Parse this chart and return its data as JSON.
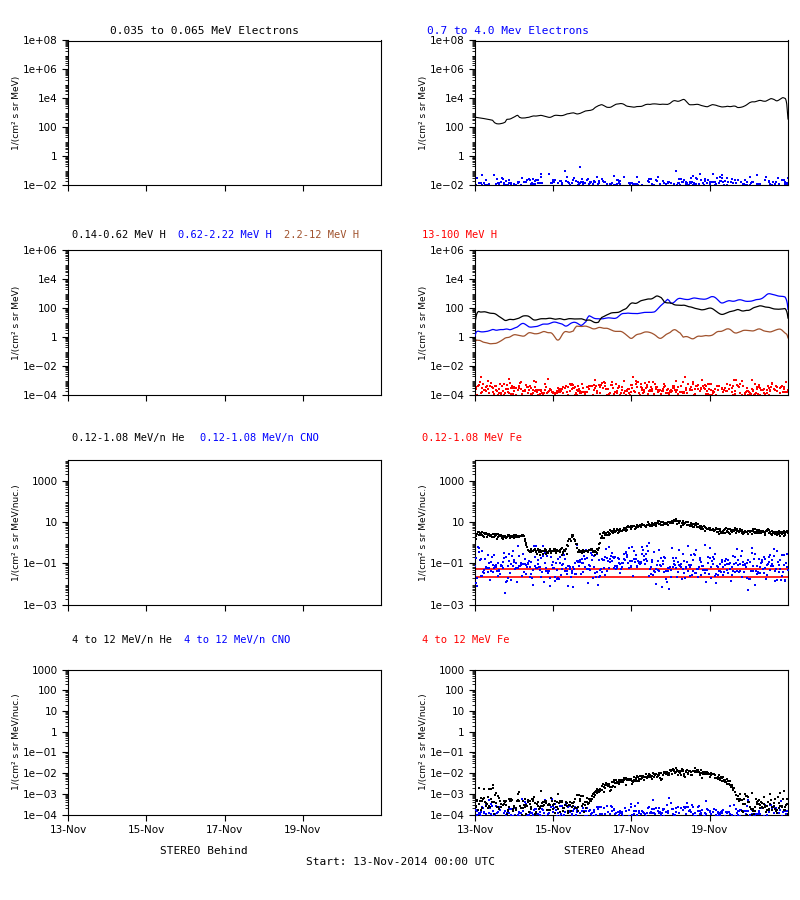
{
  "title_row1_left": "0.035 to 0.065 MeV Electrons",
  "title_row1_right": "0.7 to 4.0 Mev Electrons",
  "title_row2_col1_black": "0.14-0.62 MeV H",
  "title_row2_col1_blue": "0.62-2.22 MeV H",
  "title_row2_col1_brown": "2.2-12 MeV H",
  "title_row2_col2_red": "13-100 MeV H",
  "title_row3_col1_black": "0.12-1.08 MeV/n He",
  "title_row3_col1_blue": "0.12-1.08 MeV/n CNO",
  "title_row3_col2_red": "0.12-1.08 MeV Fe",
  "title_row4_col1_black": "4 to 12 MeV/n He",
  "title_row4_col1_blue": "4 to 12 MeV/n CNO",
  "title_row4_col2_red": "4 to 12 MeV Fe",
  "xlabel_left": "STEREO Behind",
  "xlabel_right": "STEREO Ahead",
  "xlabel_center": "Start: 13-Nov-2014 00:00 UTC",
  "ylabel_electrons": "1/(cm² s sr MeV)",
  "ylabel_H": "1/(cm² s sr MeV)",
  "ylabel_HN": "1/(cm² s sr MeV/nuc.)",
  "xtick_labels": [
    "13-Nov",
    "15-Nov",
    "17-Nov",
    "19-Nov"
  ],
  "row1_ylim": [
    -2,
    8
  ],
  "row2_ylim": [
    -4,
    6
  ],
  "row3_ylim": [
    -3,
    4
  ],
  "row4_ylim": [
    -4,
    3
  ],
  "n_points": 500,
  "color_black": "#000000",
  "color_blue": "#0000ff",
  "color_brown": "#a0522d",
  "color_red": "#ff0000"
}
